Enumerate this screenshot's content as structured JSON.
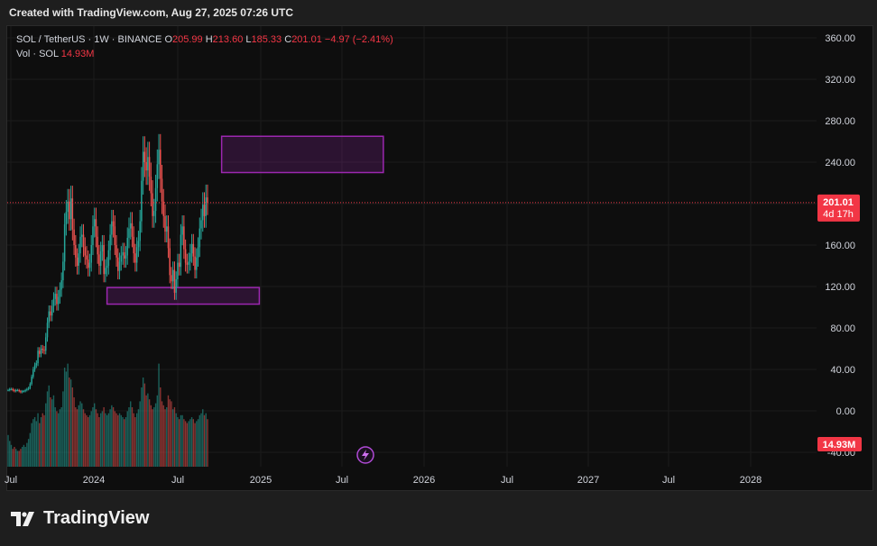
{
  "header": {
    "created_text": "Created with TradingView.com, Aug 27, 2025 07:26 UTC"
  },
  "legend": {
    "symbol": "SOL / TetherUS · 1W · BINANCE",
    "open_label": "O",
    "open": "205.99",
    "high_label": "H",
    "high": "213.60",
    "low_label": "L",
    "low": "185.33",
    "close_label": "C",
    "close": "201.01",
    "change": "−4.97 (−2.41%)",
    "vol_label": "Vol · SOL",
    "vol_value": "14.93M"
  },
  "price_tag": {
    "value": "201.01",
    "countdown": "4d 17h",
    "color": "#f23645"
  },
  "volume_tag": {
    "value": "14.93M",
    "color": "#f23645"
  },
  "brand": {
    "name": "TradingView"
  },
  "colors": {
    "up": "#26a69a",
    "down": "#ef5350",
    "zone": "#9c27b0",
    "background": "#0e0e0e"
  },
  "chart_data": {
    "type": "candlestick",
    "y_axis": {
      "min": -40,
      "max": 360,
      "ticks": [
        "360.00",
        "320.00",
        "280.00",
        "240.00",
        "200.00",
        "160.00",
        "120.00",
        "80.00",
        "40.00",
        "0.00",
        "-40.00"
      ],
      "tick_values": [
        360,
        320,
        280,
        240,
        200,
        160,
        120,
        80,
        40,
        0,
        -40
      ]
    },
    "x_axis": {
      "labels": [
        "Jul",
        "2024",
        "Jul",
        "2025",
        "Jul",
        "2026",
        "Jul",
        "2027",
        "Jul",
        "2028"
      ]
    },
    "last_price": 201.01,
    "zones": [
      {
        "name": "resistance",
        "low": 230,
        "high": 265,
        "from_week": 136,
        "to_week": 239
      },
      {
        "name": "support",
        "low": 103,
        "high": 119,
        "from_week": 63,
        "to_week": 160
      }
    ],
    "weekly_close": [
      20,
      21,
      21,
      20,
      19,
      20,
      20,
      19,
      18,
      19,
      19,
      20,
      21,
      22,
      26,
      33,
      40,
      44,
      46,
      58,
      55,
      60,
      59,
      58,
      71,
      85,
      96,
      92,
      101,
      108,
      113,
      103,
      110,
      117,
      126,
      144,
      180,
      192,
      202,
      185,
      205,
      175,
      160,
      148,
      140,
      152,
      168,
      170,
      158,
      150,
      146,
      138,
      143,
      160,
      178,
      185,
      168,
      151,
      140,
      154,
      160,
      132,
      138,
      140,
      155,
      170,
      183,
      178,
      160,
      148,
      135,
      144,
      150,
      153,
      147,
      150,
      167,
      176,
      181,
      168,
      152,
      143,
      158,
      164,
      183,
      222,
      250,
      240,
      232,
      245,
      226,
      210,
      188,
      193,
      215,
      238,
      252,
      224,
      202,
      188,
      173,
      178,
      157,
      131,
      125,
      136,
      114,
      127,
      143,
      139,
      170,
      178,
      156,
      143,
      141,
      144,
      152,
      161,
      149,
      136,
      148,
      158,
      176,
      184,
      199,
      188,
      206,
      201
    ],
    "weekly_volume": [
      16,
      13,
      11,
      9,
      10,
      9,
      8,
      8,
      9,
      10,
      11,
      10,
      12,
      14,
      17,
      22,
      24,
      25,
      23,
      27,
      22,
      25,
      27,
      26,
      32,
      38,
      41,
      35,
      34,
      36,
      30,
      28,
      27,
      29,
      30,
      38,
      50,
      48,
      52,
      45,
      44,
      40,
      35,
      30,
      29,
      31,
      33,
      32,
      29,
      27,
      26,
      25,
      26,
      28,
      30,
      32,
      29,
      27,
      25,
      27,
      28,
      30,
      27,
      26,
      27,
      29,
      31,
      30,
      28,
      27,
      26,
      27,
      26,
      25,
      24,
      25,
      28,
      30,
      33,
      30,
      27,
      25,
      27,
      29,
      33,
      40,
      45,
      42,
      36,
      37,
      34,
      31,
      29,
      30,
      32,
      36,
      52,
      40,
      33,
      31,
      29,
      30,
      36,
      34,
      33,
      29,
      30,
      27,
      25,
      24,
      26,
      26,
      24,
      23,
      22,
      23,
      24,
      25,
      24,
      22,
      23,
      24,
      26,
      27,
      29,
      26,
      27,
      24
    ]
  }
}
